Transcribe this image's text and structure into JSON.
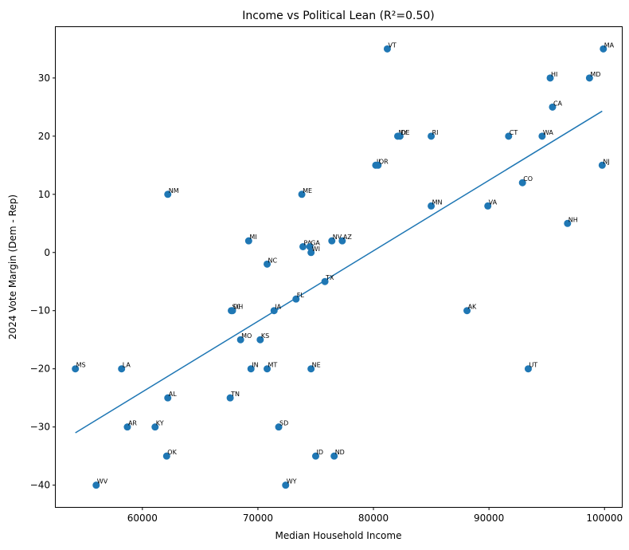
{
  "chart_data": {
    "type": "scatter",
    "title": "Income vs Political Lean (R²=0.50)",
    "xlabel": "Median Household Income",
    "ylabel": "2024 Vote Margin (Dem - Rep)",
    "xlim": [
      52500,
      101500
    ],
    "ylim": [
      -43.75,
      38.75
    ],
    "xticks": [
      60000,
      70000,
      80000,
      90000,
      100000
    ],
    "yticks": [
      -40,
      -30,
      -20,
      -10,
      0,
      10,
      20,
      30
    ],
    "point_color": "#1f77b4",
    "line_color": "#1f77b4",
    "trendline": {
      "x": [
        54200,
        99800
      ],
      "y": [
        -31.0,
        24.3
      ]
    },
    "points": [
      {
        "label": "MS",
        "x": 54200,
        "y": -20
      },
      {
        "label": "WV",
        "x": 56000,
        "y": -40
      },
      {
        "label": "LA",
        "x": 58200,
        "y": -20
      },
      {
        "label": "AR",
        "x": 58700,
        "y": -30
      },
      {
        "label": "KY",
        "x": 61100,
        "y": -30
      },
      {
        "label": "OK",
        "x": 62100,
        "y": -35
      },
      {
        "label": "AL",
        "x": 62200,
        "y": -25
      },
      {
        "label": "NM",
        "x": 62200,
        "y": 10
      },
      {
        "label": "TN",
        "x": 67600,
        "y": -25
      },
      {
        "label": "SC",
        "x": 67700,
        "y": -10
      },
      {
        "label": "OH",
        "x": 67800,
        "y": -10
      },
      {
        "label": "MO",
        "x": 68500,
        "y": -15
      },
      {
        "label": "MI",
        "x": 69200,
        "y": 2
      },
      {
        "label": "IN",
        "x": 69400,
        "y": -20
      },
      {
        "label": "KS",
        "x": 70200,
        "y": -15
      },
      {
        "label": "NC",
        "x": 70800,
        "y": -2
      },
      {
        "label": "MT",
        "x": 70800,
        "y": -20
      },
      {
        "label": "IA",
        "x": 71400,
        "y": -10
      },
      {
        "label": "SD",
        "x": 71800,
        "y": -30
      },
      {
        "label": "WY",
        "x": 72400,
        "y": -40
      },
      {
        "label": "FL",
        "x": 73300,
        "y": -8
      },
      {
        "label": "ME",
        "x": 73800,
        "y": 10
      },
      {
        "label": "PA",
        "x": 73900,
        "y": 1
      },
      {
        "label": "GA",
        "x": 74500,
        "y": 1
      },
      {
        "label": "WI",
        "x": 74600,
        "y": 0
      },
      {
        "label": "NE",
        "x": 74600,
        "y": -20
      },
      {
        "label": "ID",
        "x": 75000,
        "y": -35
      },
      {
        "label": "TX",
        "x": 75800,
        "y": -5
      },
      {
        "label": "NV",
        "x": 76400,
        "y": 2
      },
      {
        "label": "ND",
        "x": 76600,
        "y": -35
      },
      {
        "label": "AZ",
        "x": 77300,
        "y": 2
      },
      {
        "label": "IL",
        "x": 80200,
        "y": 15
      },
      {
        "label": "OR",
        "x": 80400,
        "y": 15
      },
      {
        "label": "VT",
        "x": 81200,
        "y": 35
      },
      {
        "label": "NY",
        "x": 82100,
        "y": 20
      },
      {
        "label": "DE",
        "x": 82300,
        "y": 20
      },
      {
        "label": "MN",
        "x": 85000,
        "y": 8
      },
      {
        "label": "RI",
        "x": 85000,
        "y": 20
      },
      {
        "label": "AK",
        "x": 88100,
        "y": -10
      },
      {
        "label": "VA",
        "x": 89900,
        "y": 8
      },
      {
        "label": "CT",
        "x": 91700,
        "y": 20
      },
      {
        "label": "CO",
        "x": 92900,
        "y": 12
      },
      {
        "label": "UT",
        "x": 93400,
        "y": -20
      },
      {
        "label": "WA",
        "x": 94600,
        "y": 20
      },
      {
        "label": "HI",
        "x": 95300,
        "y": 30
      },
      {
        "label": "CA",
        "x": 95500,
        "y": 25
      },
      {
        "label": "NH",
        "x": 96800,
        "y": 5
      },
      {
        "label": "MD",
        "x": 98700,
        "y": 30
      },
      {
        "label": "NJ",
        "x": 99800,
        "y": 15
      },
      {
        "label": "MA",
        "x": 99900,
        "y": 35
      }
    ]
  }
}
